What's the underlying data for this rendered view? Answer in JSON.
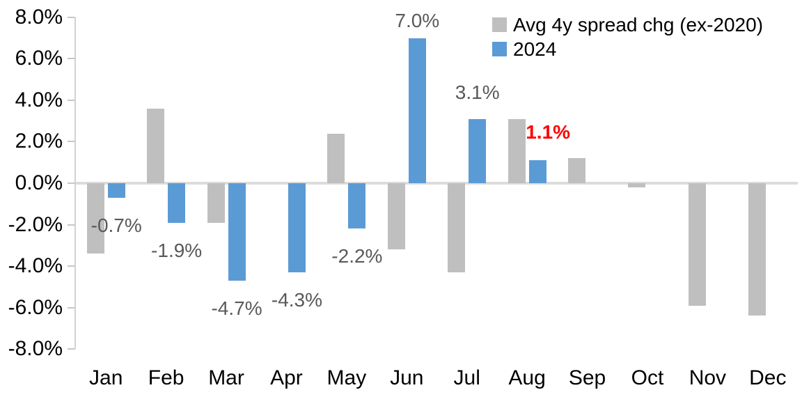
{
  "chart_data": {
    "type": "bar",
    "title": "",
    "xlabel": "",
    "ylabel": "",
    "categories": [
      "Jan",
      "Feb",
      "Mar",
      "Apr",
      "May",
      "Jun",
      "Jul",
      "Aug",
      "Sep",
      "Oct",
      "Nov",
      "Dec"
    ],
    "series": [
      {
        "name": "Avg 4y spread chg (ex-2020)",
        "color": "#bfbfbf",
        "values": [
          -3.4,
          3.6,
          -1.9,
          0.0,
          2.4,
          -3.2,
          -4.3,
          3.1,
          1.2,
          -0.2,
          -5.9,
          -6.4
        ]
      },
      {
        "name": "2024",
        "color": "#5b9bd5",
        "values": [
          -0.7,
          -1.9,
          -4.7,
          -4.3,
          -2.2,
          7.0,
          3.1,
          1.1,
          null,
          null,
          null,
          null
        ],
        "data_labels": [
          {
            "month": "Jan",
            "text": "-0.7%",
            "color": "#595959",
            "bold": false
          },
          {
            "month": "Feb",
            "text": "-1.9%",
            "color": "#595959",
            "bold": false
          },
          {
            "month": "Mar",
            "text": "-4.7%",
            "color": "#595959",
            "bold": false
          },
          {
            "month": "Apr",
            "text": "-4.3%",
            "color": "#595959",
            "bold": false
          },
          {
            "month": "May",
            "text": "-2.2%",
            "color": "#595959",
            "bold": false
          },
          {
            "month": "Jun",
            "text": "7.0%",
            "color": "#595959",
            "bold": false
          },
          {
            "month": "Jul",
            "text": "3.1%",
            "color": "#595959",
            "bold": false
          },
          {
            "month": "Aug",
            "text": "1.1%",
            "color": "#ff0000",
            "bold": true
          }
        ]
      }
    ],
    "ylim": [
      -8,
      8
    ],
    "y_ticks": [
      "8.0%",
      "6.0%",
      "4.0%",
      "2.0%",
      "0.0%",
      "-2.0%",
      "-4.0%",
      "-6.0%",
      "-8.0%"
    ],
    "grid": false,
    "legend_position": "top-right",
    "axis_color": "#d2d2d2",
    "zero_line_color": "#dcdcdc",
    "background": "#ffffff"
  }
}
